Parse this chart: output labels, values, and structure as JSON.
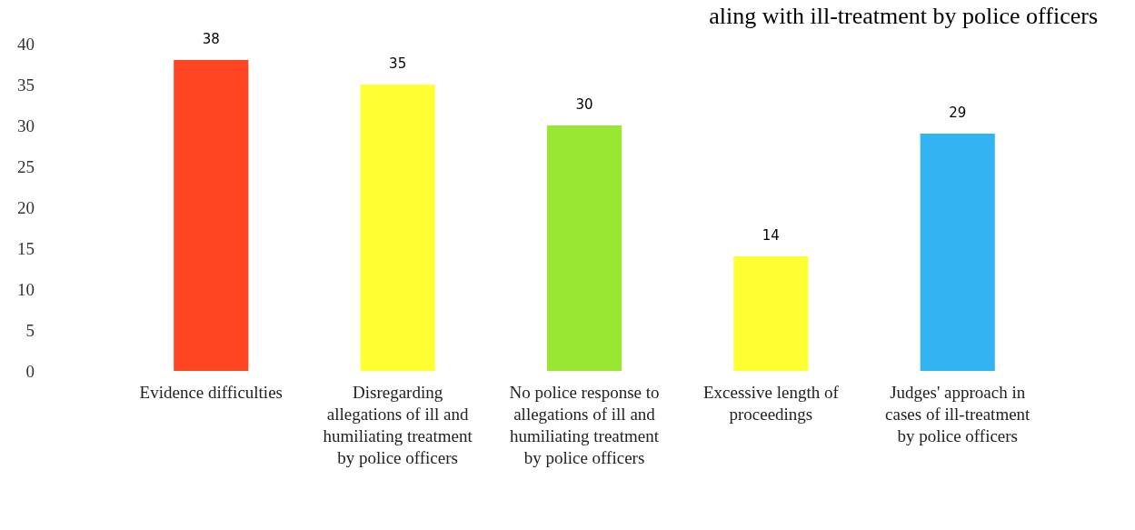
{
  "chart_data": {
    "type": "bar",
    "title": "aling with ill-treatment by police officers",
    "categories": [
      "Evidence difficulties",
      "Disregarding allegations of ill and humiliating treatment by police officers",
      "No police response to allegations of ill and humiliating treatment by police officers",
      "Excessive length of proceedings",
      "Judges' approach in cases of ill-treatment by police officers"
    ],
    "values": [
      38,
      35,
      30,
      14,
      29
    ],
    "colors": [
      "#ff4422",
      "#ffff33",
      "#99e633",
      "#ffff33",
      "#33b3f2"
    ],
    "ylim": [
      0,
      40
    ],
    "yticks": [
      0,
      5,
      10,
      15,
      20,
      25,
      30,
      35,
      40
    ],
    "data_labels": true,
    "grid": false
  }
}
